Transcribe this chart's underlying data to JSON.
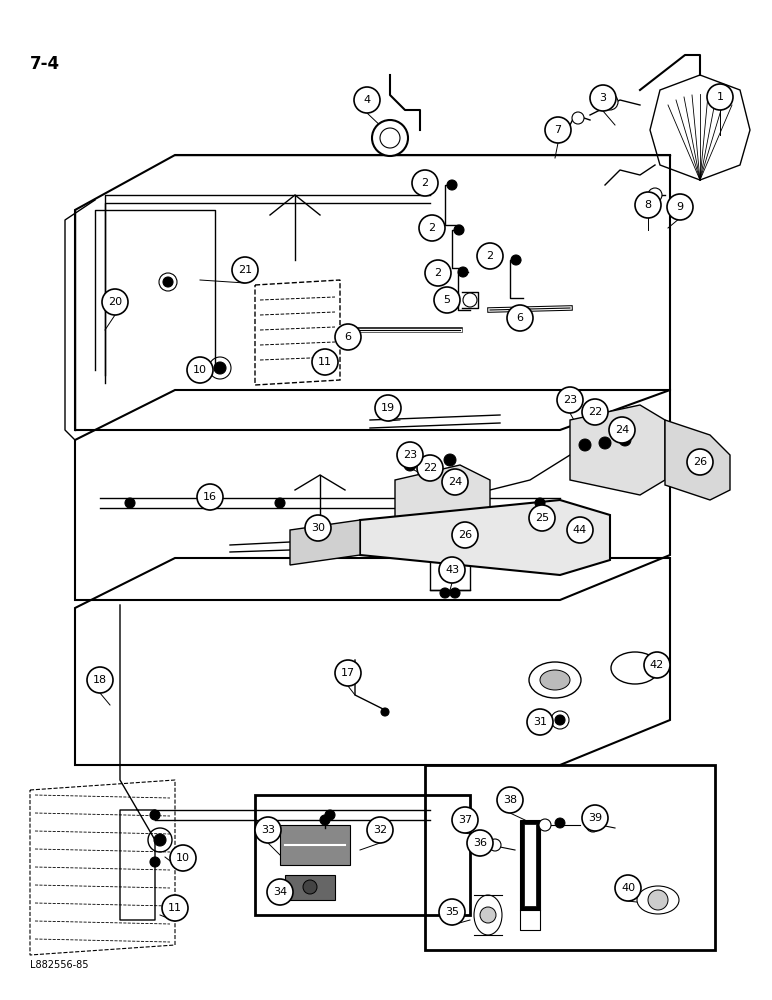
{
  "page_label": "7-4",
  "footer_label": "L882556-85",
  "bg": "#ffffff",
  "lc": "#000000",
  "figsize": [
    7.72,
    10.0
  ],
  "dpi": 100
}
